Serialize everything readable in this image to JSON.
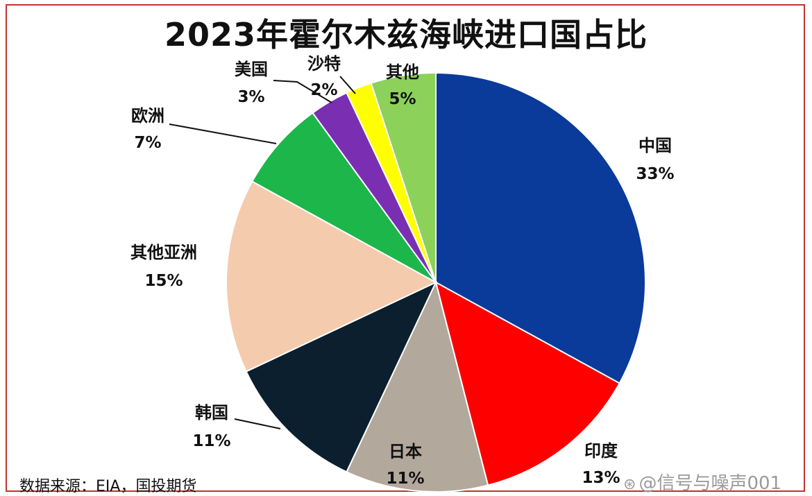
{
  "chart_data": {
    "type": "pie",
    "title": "2023年霍尔木兹海峡进口国占比",
    "categories": [
      "中国",
      "印度",
      "日本",
      "韩国",
      "其他亚洲",
      "欧洲",
      "美国",
      "沙特",
      "其他"
    ],
    "values": [
      33,
      13,
      11,
      11,
      15,
      7,
      3,
      2,
      5
    ],
    "value_labels": [
      "33%",
      "13%",
      "11%",
      "11%",
      "15%",
      "7%",
      "3%",
      "2%",
      "5%"
    ],
    "colors": [
      "#0a3a9a",
      "#ff0000",
      "#b3a89c",
      "#0b1f2e",
      "#f4cbad",
      "#1cb64a",
      "#7a2fb2",
      "#ffff00",
      "#8bd15a"
    ],
    "start": "12 o'clock",
    "direction": "clockwise",
    "legend": "none"
  },
  "source": "数据来源：EIA，国投期货",
  "watermark": {
    "icon": "weibo-icon",
    "text": "@信号与噪声001"
  }
}
